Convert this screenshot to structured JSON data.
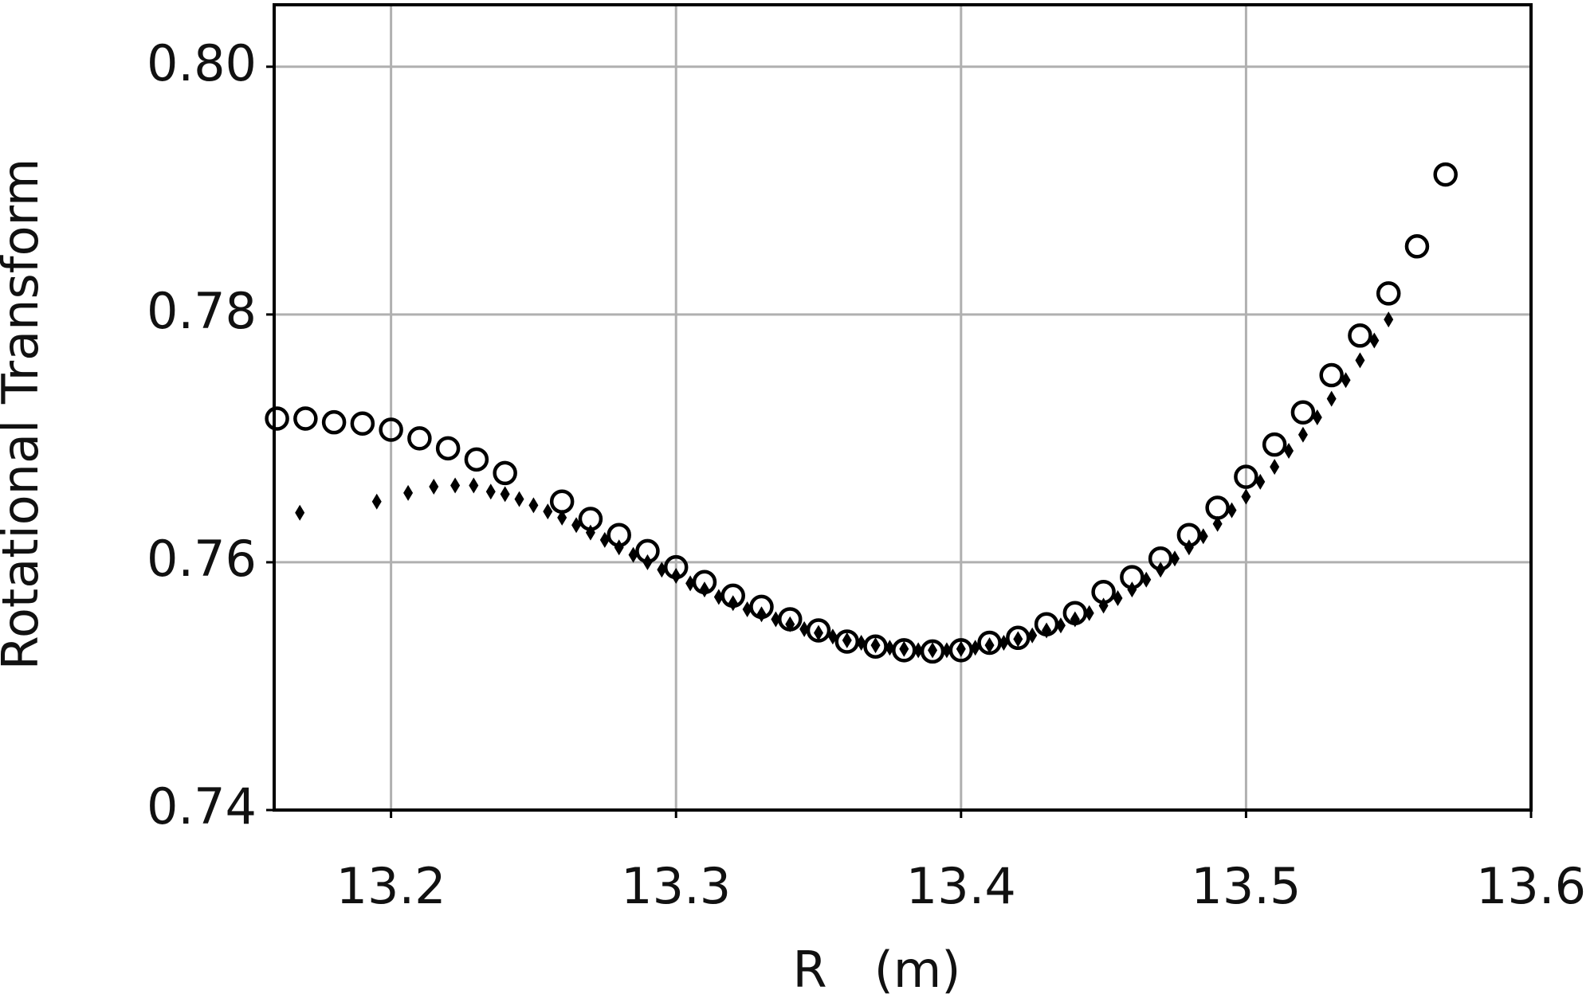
{
  "chart_data": {
    "type": "scatter",
    "xlabel": "R   (m)",
    "ylabel": "Rotational Transform",
    "xlim": [
      13.159,
      13.6
    ],
    "ylim": [
      0.74,
      0.805
    ],
    "xticks": [
      13.2,
      13.3,
      13.4,
      13.5,
      13.6
    ],
    "yticks": [
      0.74,
      0.76,
      0.78,
      {
        "value": 0.8,
        "label": "0.80"
      }
    ],
    "grid": true,
    "series": [
      {
        "marker": "circle",
        "color": "#000000",
        "x": [
          13.16,
          13.17,
          13.18,
          13.19,
          13.2,
          13.21,
          13.22,
          13.23,
          13.24,
          13.26,
          13.27,
          13.28,
          13.29,
          13.3,
          13.31,
          13.32,
          13.33,
          13.34,
          13.35,
          13.36,
          13.37,
          13.38,
          13.39,
          13.4,
          13.41,
          13.42,
          13.43,
          13.44,
          13.45,
          13.46,
          13.47,
          13.48,
          13.49,
          13.5,
          13.51,
          13.52,
          13.53,
          13.54,
          13.55,
          13.56,
          13.57
        ],
        "values": [
          0.7716,
          0.7716,
          0.7713,
          0.7712,
          0.7707,
          0.77,
          0.7692,
          0.7683,
          0.7672,
          0.7649,
          0.7635,
          0.7622,
          0.7609,
          0.7596,
          0.7584,
          0.7573,
          0.7564,
          0.7554,
          0.7545,
          0.7536,
          0.7532,
          0.7529,
          0.7528,
          0.7529,
          0.7535,
          0.7539,
          0.755,
          0.7559,
          0.7576,
          0.7588,
          0.7603,
          0.7622,
          0.7644,
          0.7669,
          0.7695,
          0.7721,
          0.7751,
          0.7783,
          0.7817,
          0.7855,
          0.7913
        ]
      },
      {
        "marker": "diamond",
        "color": "#000000",
        "x": [
          13.168,
          13.195,
          13.206,
          13.215,
          13.2225,
          13.229,
          13.235,
          13.24,
          13.245,
          13.25,
          13.255,
          13.26,
          13.265,
          13.27,
          13.275,
          13.28,
          13.285,
          13.29,
          13.295,
          13.3,
          13.305,
          13.31,
          13.315,
          13.32,
          13.325,
          13.33,
          13.335,
          13.34,
          13.345,
          13.35,
          13.355,
          13.36,
          13.365,
          13.37,
          13.375,
          13.38,
          13.385,
          13.39,
          13.395,
          13.4,
          13.405,
          13.41,
          13.415,
          13.42,
          13.425,
          13.43,
          13.435,
          13.44,
          13.445,
          13.45,
          13.455,
          13.46,
          13.465,
          13.47,
          13.475,
          13.48,
          13.485,
          13.49,
          13.495,
          13.5,
          13.505,
          13.51,
          13.515,
          13.52,
          13.525,
          13.53,
          13.535,
          13.54,
          13.545,
          13.55
        ],
        "values": [
          0.764,
          0.7649,
          0.7656,
          0.7661,
          0.7662,
          0.7662,
          0.7657,
          0.7655,
          0.7651,
          0.7646,
          0.7641,
          0.7636,
          0.763,
          0.7624,
          0.7618,
          0.7612,
          0.7606,
          0.76,
          0.7594,
          0.7589,
          0.7583,
          0.7578,
          0.7572,
          0.7567,
          0.7562,
          0.7558,
          0.7554,
          0.755,
          0.7546,
          0.7543,
          0.754,
          0.7537,
          0.7535,
          0.7533,
          0.7531,
          0.753,
          0.7529,
          0.7529,
          0.7529,
          0.753,
          0.7531,
          0.7533,
          0.7535,
          0.7538,
          0.7541,
          0.7545,
          0.7549,
          0.7554,
          0.7559,
          0.7565,
          0.7571,
          0.7578,
          0.7586,
          0.7594,
          0.7603,
          0.7612,
          0.7621,
          0.7631,
          0.7642,
          0.7653,
          0.7665,
          0.7677,
          0.769,
          0.7703,
          0.7717,
          0.7732,
          0.7747,
          0.7763,
          0.7779,
          0.7796
        ]
      }
    ]
  }
}
